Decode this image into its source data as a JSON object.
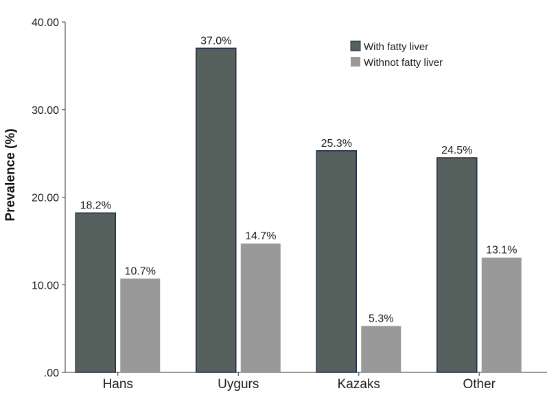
{
  "chart_data": {
    "type": "bar",
    "title": "",
    "xlabel": "",
    "ylabel": "Prevalence (%)",
    "categories": [
      "Hans",
      "Uygurs",
      "Kazaks",
      "Other"
    ],
    "ylim": [
      0,
      40
    ],
    "yticks": [
      ".00",
      "10.00",
      "20.00",
      "30.00",
      "40.00"
    ],
    "grid": false,
    "legend_position": "top-right",
    "series": [
      {
        "name": "With fatty liver",
        "values": [
          18.2,
          37.0,
          25.3,
          24.5
        ],
        "labels": [
          "18.2%",
          "37.0%",
          "25.3%",
          "24.5%"
        ],
        "color": "#56605c"
      },
      {
        "name": "Withnot fatty liver",
        "values": [
          10.7,
          14.7,
          5.3,
          13.1
        ],
        "labels": [
          "10.7%",
          "14.7%",
          "5.3%",
          "13.1%"
        ],
        "color": "#999999"
      }
    ]
  }
}
